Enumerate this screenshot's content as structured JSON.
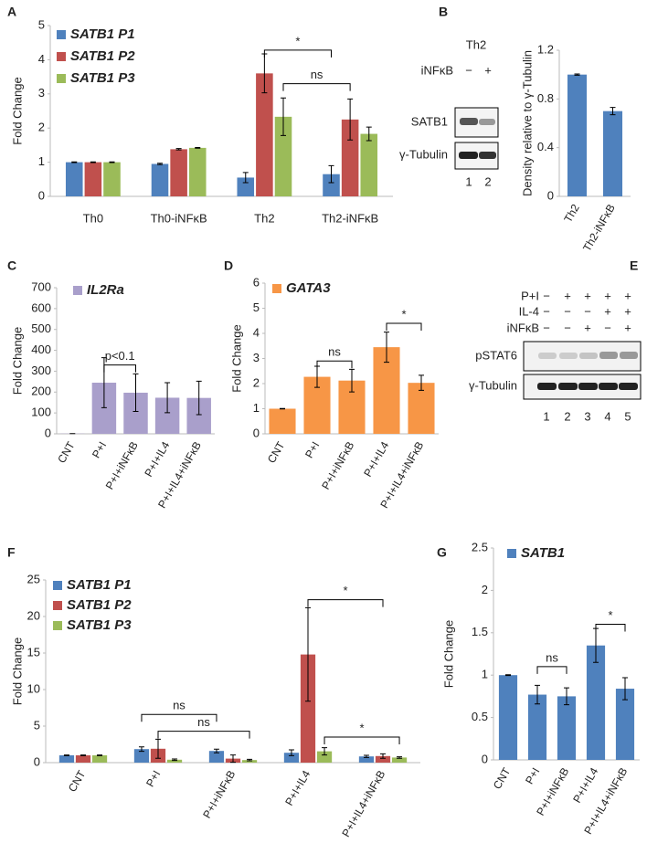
{
  "chart_data": [
    {
      "panel": "A",
      "type": "bar",
      "ylabel": "Fold Change",
      "categories": [
        "Th0",
        "Th0-iNFκB",
        "Th2",
        "Th2-iNFκB"
      ],
      "series": [
        {
          "name": "SATB1 P1",
          "color": "#4f81bd",
          "values": [
            1.0,
            0.95,
            0.55,
            0.65
          ],
          "errors": [
            0.01,
            0.02,
            0.15,
            0.25
          ]
        },
        {
          "name": "SATB1 P2",
          "color": "#c0504d",
          "values": [
            1.0,
            1.38,
            3.6,
            2.25
          ],
          "errors": [
            0.01,
            0.02,
            0.57,
            0.6
          ]
        },
        {
          "name": "SATB1 P3",
          "color": "#9bbb59",
          "values": [
            1.0,
            1.42,
            2.33,
            1.83
          ],
          "errors": [
            0.01,
            0.01,
            0.55,
            0.2
          ]
        }
      ],
      "ylim": [
        0,
        5
      ],
      "yticks": [
        0,
        1,
        2,
        3,
        4,
        5
      ],
      "annotations": [
        "*",
        "ns"
      ]
    },
    {
      "panel": "B",
      "type": "bar",
      "ylabel": "Density relative to γ-Tubulin",
      "categories": [
        "Th2",
        "Th2-iNFκB"
      ],
      "values": [
        1.0,
        0.7
      ],
      "errors": [
        0.005,
        0.03
      ],
      "color": "#4f81bd",
      "ylim": [
        0,
        1.2
      ],
      "yticks": [
        0,
        0.4,
        0.8,
        1.2
      ]
    },
    {
      "panel": "C",
      "type": "bar",
      "ylabel": "Fold Change",
      "categories": [
        "CNT",
        "P+I",
        "P+I+iNFκB",
        "P+I+IL4",
        "P+I+IL4+iNFκB"
      ],
      "series": [
        {
          "name": "IL2Ra",
          "color": "#a99fcb",
          "values": [
            1,
            245,
            197,
            173,
            172
          ],
          "errors": [
            0,
            120,
            90,
            72,
            80
          ]
        }
      ],
      "ylim": [
        0,
        700
      ],
      "yticks": [
        0,
        100,
        200,
        300,
        400,
        500,
        600,
        700
      ],
      "annotations": [
        "p<0.1"
      ]
    },
    {
      "panel": "D",
      "type": "bar",
      "ylabel": "Fold Change",
      "categories": [
        "CNT",
        "P+I",
        "P+I+iNFκB",
        "P+I+IL4",
        "P+I+IL4+iNFκB"
      ],
      "series": [
        {
          "name": "GATA3",
          "color": "#f79646",
          "values": [
            1.0,
            2.27,
            2.12,
            3.45,
            2.03
          ],
          "errors": [
            0.01,
            0.42,
            0.45,
            0.6,
            0.3
          ]
        }
      ],
      "ylim": [
        0,
        6
      ],
      "yticks": [
        0,
        1,
        2,
        3,
        4,
        5,
        6
      ],
      "annotations": [
        "ns",
        "*"
      ]
    },
    {
      "panel": "F",
      "type": "bar",
      "ylabel": "Fold Change",
      "categories": [
        "CNT",
        "P+I",
        "P+I+iNFκB",
        "P+I+IL4",
        "P+I+IL4+iNFκB"
      ],
      "series": [
        {
          "name": "SATB1 P1",
          "color": "#4f81bd",
          "values": [
            1.0,
            1.85,
            1.6,
            1.35,
            0.85
          ],
          "errors": [
            0.05,
            0.3,
            0.25,
            0.4,
            0.15
          ]
        },
        {
          "name": "SATB1 P2",
          "color": "#c0504d",
          "values": [
            1.0,
            1.9,
            0.55,
            14.8,
            0.9
          ],
          "errors": [
            0.05,
            1.3,
            0.5,
            6.4,
            0.3
          ]
        },
        {
          "name": "SATB1 P3",
          "color": "#9bbb59",
          "values": [
            1.0,
            0.4,
            0.35,
            1.55,
            0.7
          ],
          "errors": [
            0.05,
            0.1,
            0.1,
            0.5,
            0.1
          ]
        }
      ],
      "ylim": [
        0,
        25
      ],
      "yticks": [
        0,
        5,
        10,
        15,
        20,
        25
      ],
      "annotations": [
        "ns",
        "ns",
        "*",
        "*"
      ]
    },
    {
      "panel": "G",
      "type": "bar",
      "ylabel": "Fold Change",
      "categories": [
        "CNT",
        "P+I",
        "P+I+iNFκB",
        "P+I+IL4",
        "P+I+IL4+iNFκB"
      ],
      "series": [
        {
          "name": "SATB1",
          "color": "#4f81bd",
          "values": [
            1.0,
            0.77,
            0.75,
            1.35,
            0.84
          ],
          "errors": [
            0.005,
            0.11,
            0.1,
            0.2,
            0.13
          ]
        }
      ],
      "ylim": [
        0,
        2.5
      ],
      "yticks": [
        0,
        0.5,
        1,
        1.5,
        2,
        2.5
      ],
      "annotations": [
        "ns",
        "*"
      ]
    }
  ],
  "blots": [
    {
      "title": "Th2",
      "conditions": [
        {
          "label": "iNFκB",
          "signs": [
            "−",
            "+"
          ]
        }
      ],
      "bands": [
        "SATB1",
        "γ-Tubulin"
      ],
      "lanes": [
        "1",
        "2"
      ]
    },
    {
      "panel": "E",
      "conditions": [
        {
          "label": "P+I",
          "signs": [
            "−",
            "+",
            "+",
            "+",
            "+"
          ]
        },
        {
          "label": "IL-4",
          "signs": [
            "−",
            "−",
            "−",
            "+",
            "+"
          ]
        },
        {
          "label": "iNFκB",
          "signs": [
            "−",
            "−",
            "+",
            "−",
            "+"
          ]
        }
      ],
      "bands": [
        "pSTAT6",
        "γ-Tubulin"
      ],
      "lanes": [
        "1",
        "2",
        "3",
        "4",
        "5"
      ]
    }
  ]
}
